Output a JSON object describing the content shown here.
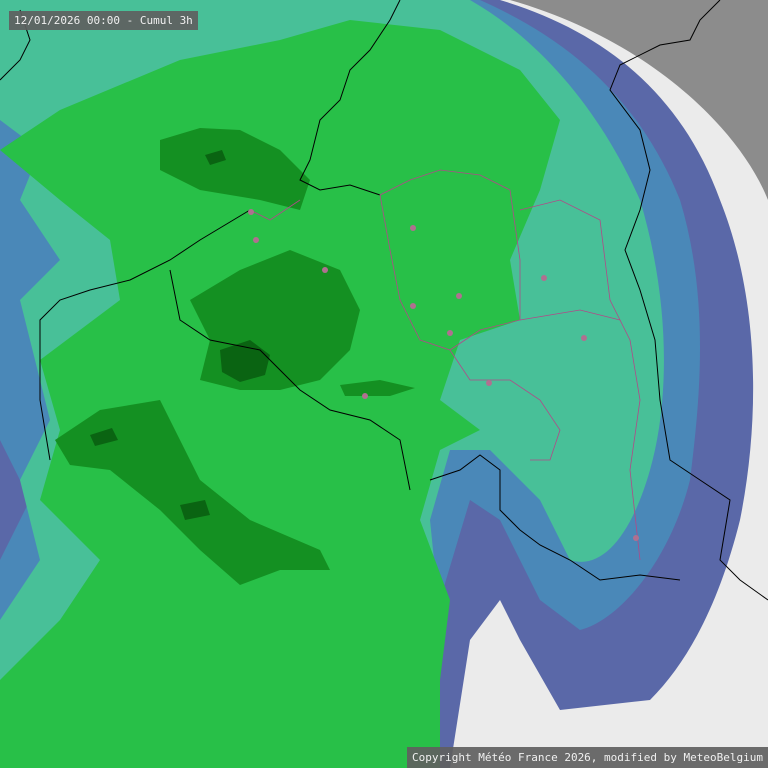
{
  "header": {
    "title": "12/01/2026 00:00 - Cumul 3h"
  },
  "footer": {
    "copyright": "Copyright Météo France 2026, modified by MeteoBelgium"
  },
  "legend_colors": {
    "no_data": "#8c8c8c",
    "no_rain": "#ebebeb",
    "very_light": "#5a68a8",
    "light": "#4a88b8",
    "light_moderate": "#48c098",
    "moderate": "#28c048",
    "heavy": "#149022",
    "very_heavy": "#0a6412"
  }
}
